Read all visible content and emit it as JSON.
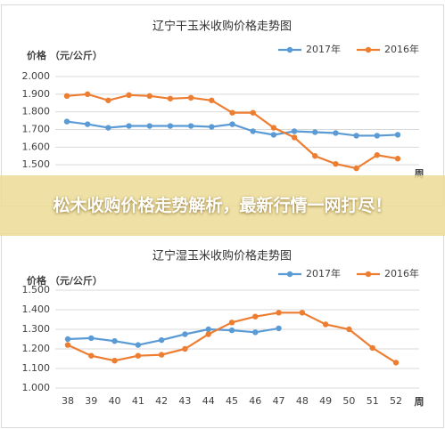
{
  "chart_data": [
    {
      "type": "line",
      "title": "辽宁干玉米收购价格走势图",
      "y_label": "价格 （元/公斤）",
      "x_label": "周",
      "categories": [
        null,
        null,
        null,
        null,
        null,
        null,
        null,
        null,
        null,
        null,
        null,
        null,
        null,
        null,
        null,
        null,
        null
      ],
      "series": [
        {
          "name": "2017年",
          "color": "#5b9bd5",
          "values": [
            1.745,
            1.73,
            1.71,
            1.72,
            1.72,
            1.72,
            1.72,
            1.715,
            1.73,
            1.69,
            1.67,
            1.69,
            1.685,
            1.68,
            1.665,
            1.665,
            1.67
          ]
        },
        {
          "name": "2016年",
          "color": "#ed7d31",
          "values": [
            1.89,
            1.9,
            1.865,
            1.895,
            1.89,
            1.875,
            1.88,
            1.865,
            1.795,
            1.795,
            1.71,
            1.655,
            1.55,
            1.505,
            1.48,
            1.555,
            1.535
          ]
        }
      ],
      "ylim": [
        1.4,
        2.0
      ],
      "yticks": [
        {
          "value": 1.5,
          "label": "1.500"
        },
        {
          "value": 1.6,
          "label": "1.600"
        },
        {
          "value": 1.7,
          "label": "1.700"
        },
        {
          "value": 1.8,
          "label": "1.800"
        },
        {
          "value": 1.9,
          "label": "1.900"
        },
        {
          "value": 2.0,
          "label": "2.000"
        }
      ],
      "grid": true,
      "legend": "top-right"
    },
    {
      "type": "line",
      "title": "辽宁湿玉米收购价格走势图",
      "y_label": "价格 （元/公斤）",
      "x_label": "周",
      "categories": [
        "38",
        "39",
        "40",
        "41",
        "42",
        "43",
        "44",
        "45",
        "46",
        "47",
        "48",
        "49",
        "50",
        "51",
        "52"
      ],
      "series": [
        {
          "name": "2017年",
          "color": "#5b9bd5",
          "values": [
            1.25,
            1.255,
            1.24,
            1.22,
            1.245,
            1.275,
            1.3,
            1.295,
            1.285,
            1.305,
            null,
            null,
            null,
            null,
            null
          ]
        },
        {
          "name": "2016年",
          "color": "#ed7d31",
          "values": [
            1.22,
            1.165,
            1.14,
            1.165,
            1.17,
            1.2,
            1.275,
            1.335,
            1.365,
            1.385,
            1.385,
            1.325,
            1.3,
            1.205,
            1.13
          ]
        }
      ],
      "ylim": [
        1.0,
        1.5
      ],
      "yticks": [
        {
          "value": 1.0,
          "label": "1.000"
        },
        {
          "value": 1.1,
          "label": "1.100"
        },
        {
          "value": 1.2,
          "label": "1.200"
        },
        {
          "value": 1.3,
          "label": "1.300"
        },
        {
          "value": 1.4,
          "label": "1.400"
        },
        {
          "value": 1.5,
          "label": "1.500"
        }
      ],
      "grid": true,
      "legend": "top-right"
    }
  ],
  "banner": {
    "text": "松木收购价格走势解析，最新行情一网打尽！"
  }
}
